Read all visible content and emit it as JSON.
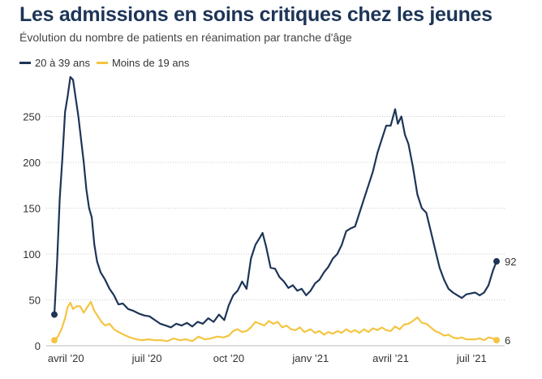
{
  "chart_data": {
    "type": "line",
    "title": "Les admissions en soins critiques chez les jeunes",
    "subtitle": "Évolution du nombre de patients en réanimation par tranche d'âge",
    "xlabel": "",
    "ylabel": "",
    "ylim": [
      0,
      300
    ],
    "yticks": [
      0,
      50,
      100,
      150,
      200,
      250
    ],
    "grid": true,
    "legend_position": "top-left",
    "x_start": "2020-03-19",
    "x_end": "2021-07-29",
    "xticks": [
      {
        "label": "avril ’20",
        "date": "2020-04-01"
      },
      {
        "label": "juil ’20",
        "date": "2020-07-01"
      },
      {
        "label": "oct ’20",
        "date": "2020-10-01"
      },
      {
        "label": "janv ’21",
        "date": "2021-01-01"
      },
      {
        "label": "avril ’21",
        "date": "2021-04-01"
      },
      {
        "label": "juil ’21",
        "date": "2021-07-01"
      }
    ],
    "series": [
      {
        "name": "20 à 39 ans",
        "color": "#1d3557",
        "end_label": "92",
        "points": [
          [
            "2020-03-19",
            34
          ],
          [
            "2020-03-22",
            90
          ],
          [
            "2020-03-25",
            160
          ],
          [
            "2020-03-28",
            205
          ],
          [
            "2020-03-31",
            255
          ],
          [
            "2020-04-03",
            272
          ],
          [
            "2020-04-06",
            293
          ],
          [
            "2020-04-09",
            290
          ],
          [
            "2020-04-12",
            270
          ],
          [
            "2020-04-15",
            250
          ],
          [
            "2020-04-18",
            225
          ],
          [
            "2020-04-21",
            200
          ],
          [
            "2020-04-24",
            170
          ],
          [
            "2020-04-27",
            150
          ],
          [
            "2020-04-30",
            140
          ],
          [
            "2020-05-03",
            110
          ],
          [
            "2020-05-06",
            92
          ],
          [
            "2020-05-10",
            80
          ],
          [
            "2020-05-15",
            72
          ],
          [
            "2020-05-20",
            62
          ],
          [
            "2020-05-25",
            55
          ],
          [
            "2020-05-30",
            45
          ],
          [
            "2020-06-04",
            46
          ],
          [
            "2020-06-10",
            40
          ],
          [
            "2020-06-16",
            38
          ],
          [
            "2020-06-22",
            35
          ],
          [
            "2020-06-28",
            33
          ],
          [
            "2020-07-04",
            32
          ],
          [
            "2020-07-10",
            28
          ],
          [
            "2020-07-16",
            24
          ],
          [
            "2020-07-22",
            22
          ],
          [
            "2020-07-28",
            20
          ],
          [
            "2020-08-03",
            24
          ],
          [
            "2020-08-09",
            22
          ],
          [
            "2020-08-15",
            25
          ],
          [
            "2020-08-21",
            21
          ],
          [
            "2020-08-27",
            26
          ],
          [
            "2020-09-02",
            24
          ],
          [
            "2020-09-08",
            30
          ],
          [
            "2020-09-14",
            26
          ],
          [
            "2020-09-20",
            34
          ],
          [
            "2020-09-26",
            28
          ],
          [
            "2020-10-01",
            44
          ],
          [
            "2020-10-06",
            55
          ],
          [
            "2020-10-11",
            60
          ],
          [
            "2020-10-16",
            70
          ],
          [
            "2020-10-21",
            62
          ],
          [
            "2020-10-26",
            95
          ],
          [
            "2020-10-31",
            110
          ],
          [
            "2020-11-05",
            118
          ],
          [
            "2020-11-08",
            123
          ],
          [
            "2020-11-12",
            108
          ],
          [
            "2020-11-17",
            85
          ],
          [
            "2020-11-22",
            84
          ],
          [
            "2020-11-27",
            75
          ],
          [
            "2020-12-02",
            70
          ],
          [
            "2020-12-07",
            63
          ],
          [
            "2020-12-12",
            66
          ],
          [
            "2020-12-17",
            60
          ],
          [
            "2020-12-22",
            62
          ],
          [
            "2020-12-27",
            55
          ],
          [
            "2021-01-01",
            60
          ],
          [
            "2021-01-06",
            68
          ],
          [
            "2021-01-11",
            72
          ],
          [
            "2021-01-16",
            80
          ],
          [
            "2021-01-21",
            86
          ],
          [
            "2021-01-26",
            95
          ],
          [
            "2021-01-31",
            100
          ],
          [
            "2021-02-05",
            110
          ],
          [
            "2021-02-10",
            125
          ],
          [
            "2021-02-15",
            128
          ],
          [
            "2021-02-20",
            130
          ],
          [
            "2021-02-25",
            145
          ],
          [
            "2021-03-02",
            160
          ],
          [
            "2021-03-07",
            175
          ],
          [
            "2021-03-12",
            190
          ],
          [
            "2021-03-17",
            210
          ],
          [
            "2021-03-22",
            225
          ],
          [
            "2021-03-27",
            240
          ],
          [
            "2021-04-01",
            240
          ],
          [
            "2021-04-06",
            258
          ],
          [
            "2021-04-09",
            242
          ],
          [
            "2021-04-13",
            250
          ],
          [
            "2021-04-17",
            230
          ],
          [
            "2021-04-21",
            220
          ],
          [
            "2021-04-26",
            195
          ],
          [
            "2021-05-01",
            165
          ],
          [
            "2021-05-06",
            150
          ],
          [
            "2021-05-11",
            145
          ],
          [
            "2021-05-16",
            125
          ],
          [
            "2021-05-21",
            105
          ],
          [
            "2021-05-26",
            85
          ],
          [
            "2021-05-31",
            72
          ],
          [
            "2021-06-05",
            62
          ],
          [
            "2021-06-10",
            58
          ],
          [
            "2021-06-15",
            55
          ],
          [
            "2021-06-20",
            52
          ],
          [
            "2021-06-25",
            56
          ],
          [
            "2021-06-30",
            57
          ],
          [
            "2021-07-05",
            58
          ],
          [
            "2021-07-10",
            55
          ],
          [
            "2021-07-15",
            58
          ],
          [
            "2021-07-20",
            66
          ],
          [
            "2021-07-25",
            82
          ],
          [
            "2021-07-29",
            92
          ]
        ]
      },
      {
        "name": "Moins de 19 ans",
        "color": "#f4c542",
        "end_label": "6",
        "points": [
          [
            "2020-03-19",
            6
          ],
          [
            "2020-03-23",
            10
          ],
          [
            "2020-03-27",
            18
          ],
          [
            "2020-03-31",
            30
          ],
          [
            "2020-04-03",
            42
          ],
          [
            "2020-04-06",
            47
          ],
          [
            "2020-04-09",
            40
          ],
          [
            "2020-04-13",
            43
          ],
          [
            "2020-04-17",
            43
          ],
          [
            "2020-04-21",
            36
          ],
          [
            "2020-04-25",
            42
          ],
          [
            "2020-04-29",
            48
          ],
          [
            "2020-05-03",
            38
          ],
          [
            "2020-05-07",
            32
          ],
          [
            "2020-05-11",
            26
          ],
          [
            "2020-05-15",
            22
          ],
          [
            "2020-05-20",
            24
          ],
          [
            "2020-05-25",
            18
          ],
          [
            "2020-05-30",
            15
          ],
          [
            "2020-06-05",
            12
          ],
          [
            "2020-06-12",
            9
          ],
          [
            "2020-06-19",
            7
          ],
          [
            "2020-06-26",
            6
          ],
          [
            "2020-07-03",
            7
          ],
          [
            "2020-07-10",
            6
          ],
          [
            "2020-07-17",
            6
          ],
          [
            "2020-07-24",
            5
          ],
          [
            "2020-07-31",
            8
          ],
          [
            "2020-08-07",
            6
          ],
          [
            "2020-08-14",
            7
          ],
          [
            "2020-08-21",
            5
          ],
          [
            "2020-08-28",
            10
          ],
          [
            "2020-09-04",
            7
          ],
          [
            "2020-09-11",
            8
          ],
          [
            "2020-09-18",
            10
          ],
          [
            "2020-09-25",
            9
          ],
          [
            "2020-10-01",
            11
          ],
          [
            "2020-10-06",
            16
          ],
          [
            "2020-10-11",
            18
          ],
          [
            "2020-10-16",
            15
          ],
          [
            "2020-10-21",
            16
          ],
          [
            "2020-10-26",
            20
          ],
          [
            "2020-10-31",
            26
          ],
          [
            "2020-11-05",
            24
          ],
          [
            "2020-11-10",
            22
          ],
          [
            "2020-11-15",
            27
          ],
          [
            "2020-11-20",
            24
          ],
          [
            "2020-11-25",
            26
          ],
          [
            "2020-11-30",
            20
          ],
          [
            "2020-12-05",
            22
          ],
          [
            "2020-12-10",
            18
          ],
          [
            "2020-12-15",
            17
          ],
          [
            "2020-12-20",
            20
          ],
          [
            "2020-12-25",
            15
          ],
          [
            "2021-01-01",
            18
          ],
          [
            "2021-01-06",
            14
          ],
          [
            "2021-01-11",
            16
          ],
          [
            "2021-01-16",
            12
          ],
          [
            "2021-01-21",
            15
          ],
          [
            "2021-01-26",
            13
          ],
          [
            "2021-01-31",
            16
          ],
          [
            "2021-02-05",
            14
          ],
          [
            "2021-02-10",
            18
          ],
          [
            "2021-02-15",
            15
          ],
          [
            "2021-02-20",
            17
          ],
          [
            "2021-02-25",
            14
          ],
          [
            "2021-03-02",
            18
          ],
          [
            "2021-03-07",
            15
          ],
          [
            "2021-03-12",
            19
          ],
          [
            "2021-03-17",
            17
          ],
          [
            "2021-03-22",
            20
          ],
          [
            "2021-03-27",
            17
          ],
          [
            "2021-04-01",
            16
          ],
          [
            "2021-04-06",
            21
          ],
          [
            "2021-04-11",
            18
          ],
          [
            "2021-04-16",
            23
          ],
          [
            "2021-04-21",
            24
          ],
          [
            "2021-04-26",
            27
          ],
          [
            "2021-05-01",
            31
          ],
          [
            "2021-05-06",
            25
          ],
          [
            "2021-05-11",
            24
          ],
          [
            "2021-05-16",
            20
          ],
          [
            "2021-05-21",
            16
          ],
          [
            "2021-05-26",
            14
          ],
          [
            "2021-05-31",
            11
          ],
          [
            "2021-06-05",
            12
          ],
          [
            "2021-06-10",
            9
          ],
          [
            "2021-06-15",
            8
          ],
          [
            "2021-06-20",
            9
          ],
          [
            "2021-06-25",
            7
          ],
          [
            "2021-06-30",
            7
          ],
          [
            "2021-07-05",
            7
          ],
          [
            "2021-07-10",
            8
          ],
          [
            "2021-07-15",
            6
          ],
          [
            "2021-07-20",
            9
          ],
          [
            "2021-07-25",
            8
          ],
          [
            "2021-07-29",
            6
          ]
        ]
      }
    ]
  }
}
